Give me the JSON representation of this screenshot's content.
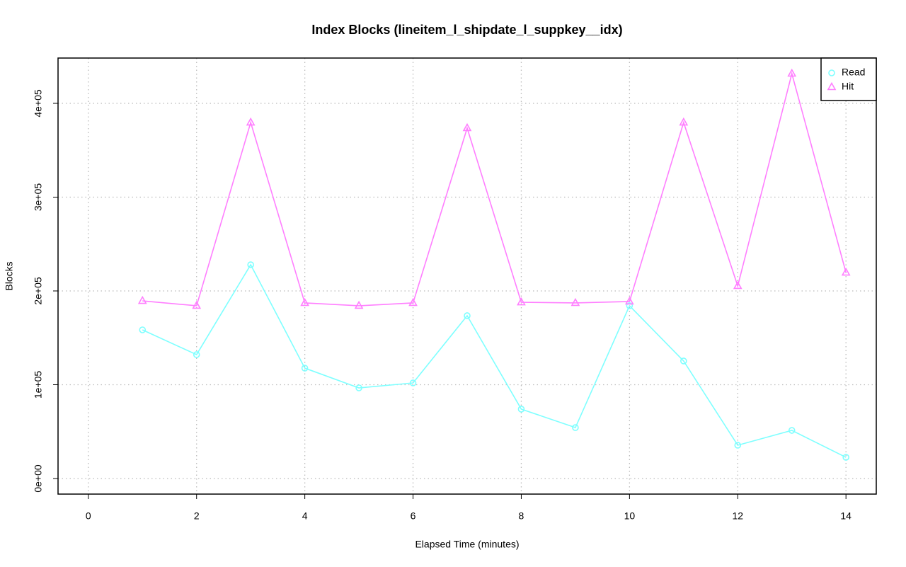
{
  "chart_data": {
    "type": "line",
    "title": "Index Blocks (lineitem_l_shipdate_l_suppkey__idx)",
    "x_label": "Elapsed Time (minutes)",
    "y_label": "Blocks",
    "x": [
      1,
      2,
      3,
      4,
      5,
      6,
      7,
      8,
      9,
      10,
      11,
      12,
      13,
      14
    ],
    "series": [
      {
        "name": "Read",
        "color": "#7fffff",
        "marker": "circle",
        "values": [
          158500,
          132100,
          227900,
          117700,
          96600,
          101900,
          173600,
          74000,
          54300,
          184200,
          125300,
          35500,
          51300,
          22600
        ]
      },
      {
        "name": "Hit",
        "color": "#ff7fff",
        "marker": "triangle",
        "values": [
          189400,
          184200,
          379600,
          187200,
          184200,
          187200,
          373600,
          187900,
          187200,
          188700,
          379600,
          205300,
          431700,
          219600
        ]
      }
    ],
    "xlim": [
      -0.56,
      14.56
    ],
    "xticks": [
      0,
      2,
      4,
      6,
      8,
      10,
      12,
      14
    ],
    "ylim": [
      -16600,
      448300
    ],
    "yticks": [
      {
        "value": 0,
        "label": "0e+00"
      },
      {
        "value": 100000,
        "label": "1e+05"
      },
      {
        "value": 200000,
        "label": "2e+05"
      },
      {
        "value": 300000,
        "label": "3e+05"
      },
      {
        "value": 400000,
        "label": "4e+05"
      }
    ],
    "grid": true,
    "legend": "topright"
  }
}
